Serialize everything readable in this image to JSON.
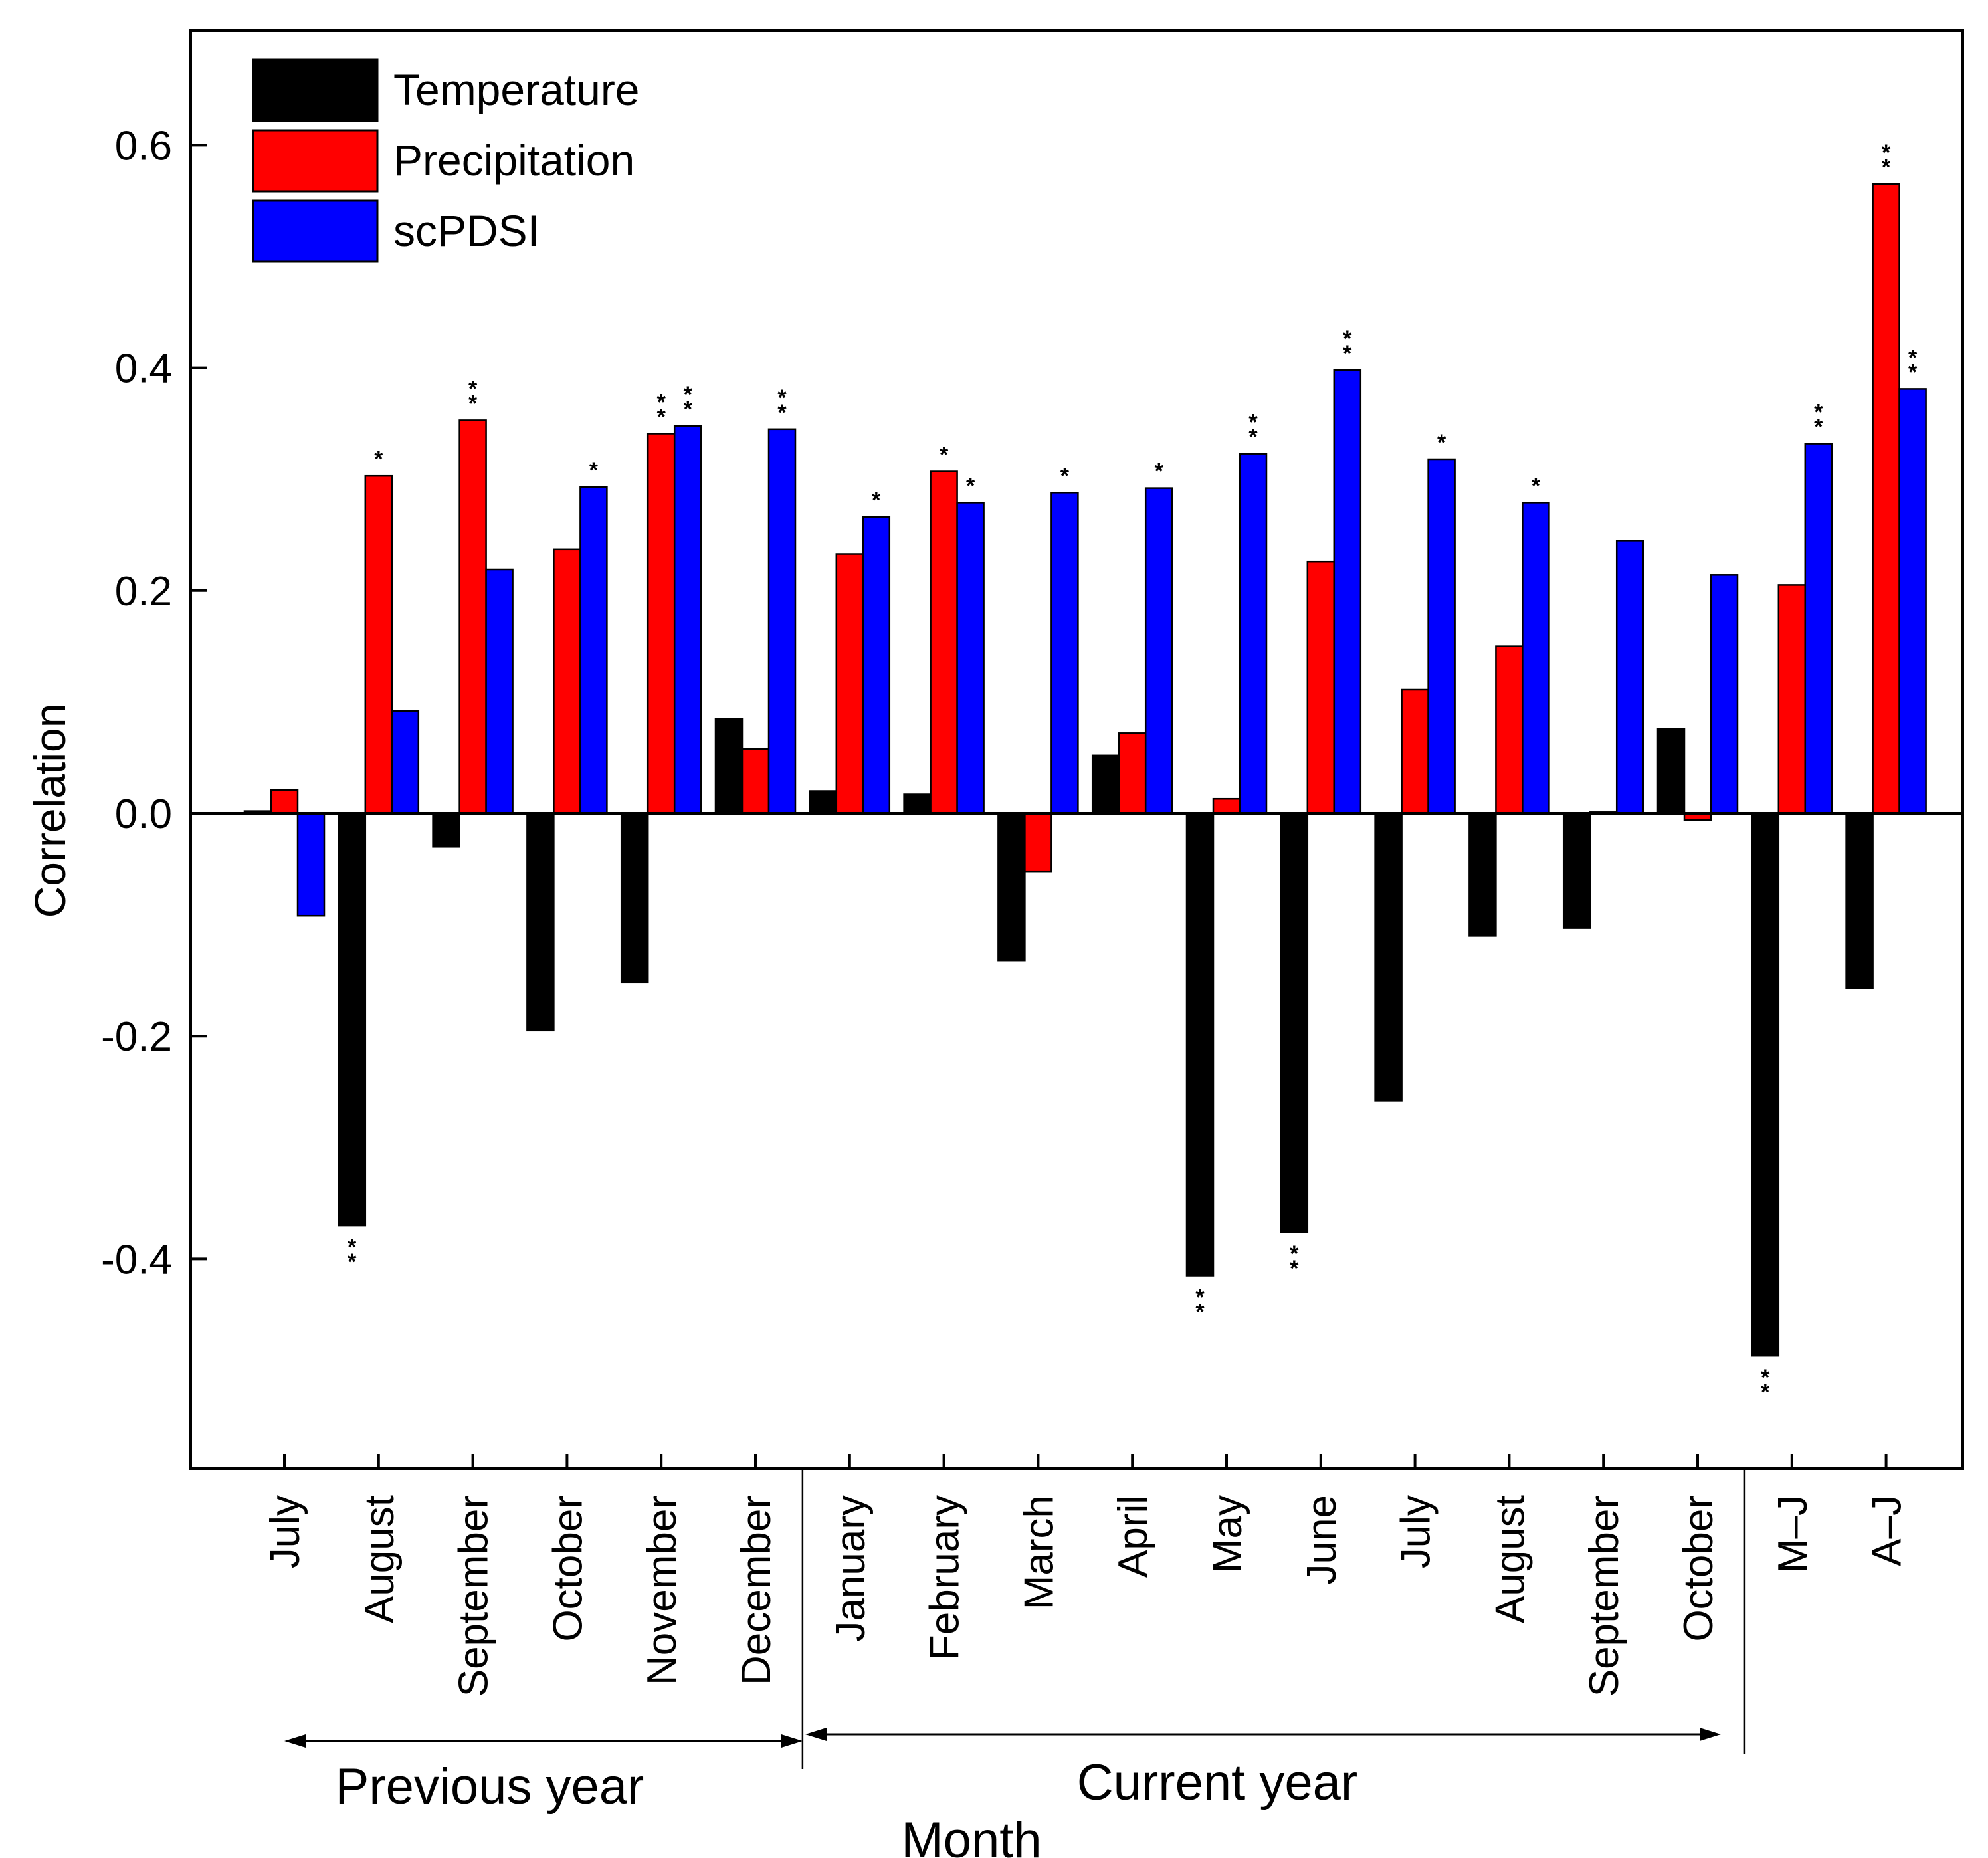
{
  "chart_data": {
    "type": "bar",
    "title": "",
    "xlabel": "Month",
    "ylabel": "Correlation",
    "ylim": [
      -0.59,
      0.7
    ],
    "yticks": [
      -0.4,
      -0.2,
      0.0,
      0.2,
      0.4,
      0.6
    ],
    "ytick_labels": [
      "-0.4",
      "-0.2",
      "0.0",
      "0.2",
      "0.4",
      "0.6"
    ],
    "grid": false,
    "legend_position": "top-left",
    "categories": [
      "July",
      "August",
      "September",
      "October",
      "November",
      "December",
      "January",
      "February",
      "March",
      "April",
      "May",
      "June",
      "July",
      "August",
      "September",
      "October",
      "M–J",
      "A–J"
    ],
    "series": [
      {
        "name": "Temperature",
        "color": "#000000",
        "values": [
          0.002,
          -0.37,
          -0.03,
          -0.195,
          -0.152,
          0.085,
          0.02,
          0.017,
          -0.132,
          0.052,
          -0.415,
          -0.376,
          -0.258,
          -0.11,
          -0.103,
          0.076,
          -0.487,
          -0.157
        ],
        "significance": [
          "",
          "**",
          "",
          "",
          "",
          "",
          "",
          "",
          "",
          "",
          "**",
          "**",
          "",
          "",
          "",
          "",
          "**",
          ""
        ]
      },
      {
        "name": "Precipitation",
        "color": "#ff0000",
        "values": [
          0.021,
          0.303,
          0.353,
          0.237,
          0.341,
          0.058,
          0.233,
          0.307,
          -0.052,
          0.072,
          0.013,
          0.226,
          0.111,
          0.15,
          0.001,
          -0.006,
          0.205,
          0.565
        ],
        "significance": [
          "",
          "*",
          "**",
          "",
          "**",
          "",
          "",
          "*",
          "",
          "",
          "",
          "",
          "",
          "",
          "",
          "",
          "",
          "**"
        ]
      },
      {
        "name": "scPDSI",
        "color": "#0000ff",
        "values": [
          -0.092,
          0.092,
          0.219,
          0.293,
          0.348,
          0.345,
          0.266,
          0.279,
          0.288,
          0.292,
          0.323,
          0.398,
          0.318,
          0.279,
          0.245,
          0.214,
          0.332,
          0.381
        ],
        "significance": [
          "",
          "",
          "",
          "*",
          "**",
          "**",
          "*",
          "*",
          "*",
          "*",
          "**",
          "**",
          "*",
          "*",
          "",
          "",
          "**",
          "**"
        ]
      }
    ],
    "groups": [
      {
        "label": "Previous year",
        "start": 0,
        "end": 5
      },
      {
        "label": "Current year",
        "start": 6,
        "end": 15
      }
    ]
  }
}
